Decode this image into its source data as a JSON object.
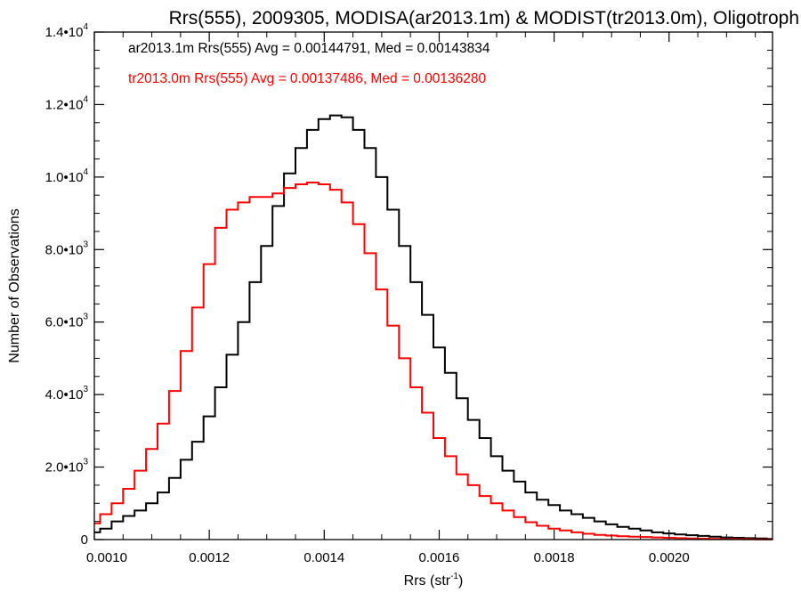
{
  "chart_data": {
    "type": "line",
    "title": "Rrs(555), 2009305, MODISA(ar2013.1m) & MODIST(tr2013.0m), Oligotroph",
    "xlabel": "Rrs (str",
    "xlabel_sup": "-1",
    "xlabel_close": ")",
    "ylabel": "Number of Observations",
    "xlim": [
      0.001,
      0.00218
    ],
    "ylim": [
      0,
      14000
    ],
    "x_ticks": [
      {
        "value": 0.001,
        "label": "0.0010"
      },
      {
        "value": 0.0012,
        "label": "0.0012"
      },
      {
        "value": 0.0014,
        "label": "0.0014"
      },
      {
        "value": 0.0016,
        "label": "0.0016"
      },
      {
        "value": 0.0018,
        "label": "0.0018"
      },
      {
        "value": 0.002,
        "label": "0.0020"
      }
    ],
    "y_ticks": [
      {
        "value": 0,
        "mant": "0",
        "exp": ""
      },
      {
        "value": 2000,
        "mant": "2.0•10",
        "exp": "3"
      },
      {
        "value": 4000,
        "mant": "4.0•10",
        "exp": "3"
      },
      {
        "value": 6000,
        "mant": "6.0•10",
        "exp": "3"
      },
      {
        "value": 8000,
        "mant": "8.0•10",
        "exp": "3"
      },
      {
        "value": 10000,
        "mant": "1.0•10",
        "exp": "4"
      },
      {
        "value": 12000,
        "mant": "1.2•10",
        "exp": "4"
      },
      {
        "value": 14000,
        "mant": "1.4•10",
        "exp": "4"
      }
    ],
    "annotations": [
      "ar2013.1m Rrs(555) Avg = 0.00144791, Med = 0.00143834",
      "tr2013.0m Rrs(555) Avg = 0.00137486, Med = 0.00136280"
    ],
    "grid": false,
    "series": [
      {
        "color": "#000000",
        "x": [
          0.001,
          0.00102,
          0.00104,
          0.00106,
          0.00108,
          0.0011,
          0.00112,
          0.00114,
          0.00116,
          0.00118,
          0.0012,
          0.00122,
          0.00124,
          0.00126,
          0.00128,
          0.0013,
          0.00132,
          0.00134,
          0.00136,
          0.00138,
          0.0014,
          0.00142,
          0.00144,
          0.00146,
          0.00148,
          0.0015,
          0.00152,
          0.00154,
          0.00156,
          0.00158,
          0.0016,
          0.00162,
          0.00164,
          0.00166,
          0.00168,
          0.0017,
          0.00172,
          0.00174,
          0.00176,
          0.00178,
          0.0018,
          0.00182,
          0.00184,
          0.00186,
          0.00188,
          0.0019,
          0.00192,
          0.00194,
          0.00196,
          0.00198,
          0.002,
          0.00202,
          0.00204,
          0.00206,
          0.00208,
          0.0021,
          0.00212,
          0.00214,
          0.00216,
          0.00218
        ],
        "y": [
          200,
          300,
          500,
          650,
          800,
          1000,
          1300,
          1700,
          2200,
          2700,
          3400,
          4200,
          5100,
          6000,
          7100,
          8100,
          9200,
          10100,
          10800,
          11300,
          11600,
          11700,
          11650,
          11300,
          10800,
          10000,
          9100,
          8100,
          7100,
          6200,
          5300,
          4600,
          3900,
          3300,
          2800,
          2300,
          1900,
          1600,
          1300,
          1100,
          950,
          800,
          700,
          600,
          500,
          420,
          350,
          300,
          250,
          200,
          170,
          140,
          120,
          100,
          80,
          60,
          50,
          40,
          30,
          20
        ]
      },
      {
        "color": "#ff0000",
        "x": [
          0.001,
          0.00102,
          0.00104,
          0.00106,
          0.00108,
          0.0011,
          0.00112,
          0.00114,
          0.00116,
          0.00118,
          0.0012,
          0.00122,
          0.00124,
          0.00126,
          0.00128,
          0.0013,
          0.00132,
          0.00134,
          0.00136,
          0.00138,
          0.0014,
          0.00142,
          0.00144,
          0.00146,
          0.00148,
          0.0015,
          0.00152,
          0.00154,
          0.00156,
          0.00158,
          0.0016,
          0.00162,
          0.00164,
          0.00166,
          0.00168,
          0.0017,
          0.00172,
          0.00174,
          0.00176,
          0.00178,
          0.0018,
          0.00182,
          0.00184,
          0.00186,
          0.00188,
          0.0019,
          0.00192,
          0.00194,
          0.00196,
          0.00198,
          0.002,
          0.00202,
          0.00204,
          0.00206,
          0.00208,
          0.0021,
          0.00212,
          0.00214,
          0.00216,
          0.00218
        ],
        "y": [
          450,
          700,
          1000,
          1400,
          1900,
          2500,
          3200,
          4100,
          5200,
          6400,
          7600,
          8600,
          9100,
          9300,
          9450,
          9450,
          9550,
          9700,
          9800,
          9850,
          9800,
          9650,
          9300,
          8700,
          7900,
          6900,
          5900,
          5000,
          4200,
          3500,
          2800,
          2300,
          1800,
          1500,
          1200,
          1000,
          800,
          620,
          480,
          380,
          300,
          250,
          200,
          160,
          130,
          110,
          90,
          80,
          70,
          60,
          50,
          40,
          30,
          25,
          20,
          15,
          12,
          10,
          8,
          5
        ]
      }
    ]
  },
  "colors": {
    "series_black": "#000000",
    "series_red": "#ff0000",
    "axes": "#000000",
    "background": "#ffffff"
  }
}
